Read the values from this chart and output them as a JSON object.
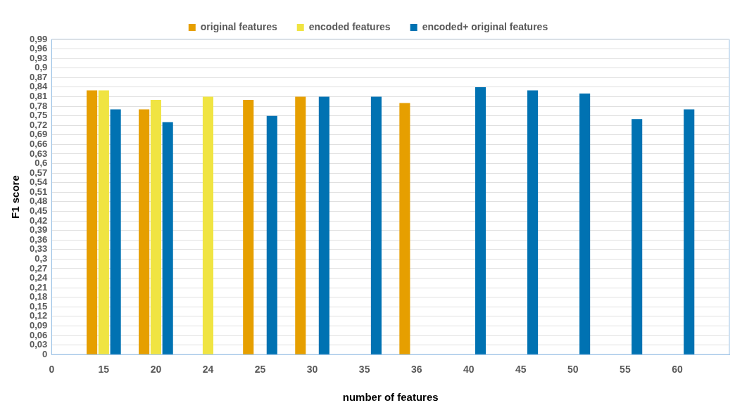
{
  "chart_data": {
    "type": "bar",
    "xlabel": "number of features",
    "ylabel": "F1 score",
    "categories": [
      "0",
      "15",
      "20",
      "24",
      "25",
      "30",
      "35",
      "36",
      "40",
      "45",
      "50",
      "55",
      "60",
      null
    ],
    "series": [
      {
        "name": "original features",
        "color": "#e69f00",
        "values": [
          null,
          0.83,
          0.77,
          null,
          0.8,
          0.81,
          null,
          0.79,
          null,
          null,
          null,
          null,
          null,
          null
        ]
      },
      {
        "name": "encoded features",
        "color": "#f0e442",
        "values": [
          null,
          0.83,
          0.8,
          0.81,
          null,
          null,
          null,
          null,
          null,
          null,
          null,
          null,
          null,
          null
        ]
      },
      {
        "name": "encoded+ original features",
        "color": "#0072b2",
        "values": [
          null,
          0.77,
          0.73,
          null,
          0.75,
          0.81,
          0.81,
          null,
          0.84,
          0.83,
          0.82,
          0.74,
          0.77,
          null
        ]
      }
    ],
    "ylim": [
      0,
      0.99
    ],
    "yticks": [
      0,
      {
        "value": 0.03,
        "label": "0,03"
      },
      {
        "value": 0.06,
        "label": "0,06"
      },
      {
        "value": 0.09,
        "label": "0,09"
      },
      {
        "value": 0.12,
        "label": "0,12"
      },
      {
        "value": 0.15,
        "label": "0,15"
      },
      {
        "value": 0.18,
        "label": "0,18"
      },
      {
        "value": 0.21,
        "label": "0,21"
      },
      {
        "value": 0.24,
        "label": "0,24"
      },
      {
        "value": 0.27,
        "label": "0,27"
      },
      {
        "value": 0.3,
        "label": "0,3"
      },
      {
        "value": 0.33,
        "label": "0,33"
      },
      {
        "value": 0.36,
        "label": "0,36"
      },
      {
        "value": 0.39,
        "label": "0,39"
      },
      {
        "value": 0.42,
        "label": "0,42"
      },
      {
        "value": 0.45,
        "label": "0,45"
      },
      {
        "value": 0.48,
        "label": "0,48"
      },
      {
        "value": 0.51,
        "label": "0,51"
      },
      {
        "value": 0.54,
        "label": "0,54"
      },
      {
        "value": 0.57,
        "label": "0,57"
      },
      {
        "value": 0.6,
        "label": "0,6"
      },
      {
        "value": 0.63,
        "label": "0,63"
      },
      {
        "value": 0.66,
        "label": "0,66"
      },
      {
        "value": 0.69,
        "label": "0,69"
      },
      {
        "value": 0.72,
        "label": "0,72"
      },
      {
        "value": 0.75,
        "label": "0,75"
      },
      {
        "value": 0.78,
        "label": "0,78"
      },
      {
        "value": 0.81,
        "label": "0,81"
      },
      {
        "value": 0.84,
        "label": "0,84"
      },
      {
        "value": 0.87,
        "label": "0,87"
      },
      {
        "value": 0.9,
        "label": "0,9"
      },
      {
        "value": 0.93,
        "label": "0,93"
      },
      {
        "value": 0.96,
        "label": "0,96"
      },
      {
        "value": 0.99,
        "label": "0,99"
      }
    ],
    "grid": "y",
    "legend": "top"
  }
}
